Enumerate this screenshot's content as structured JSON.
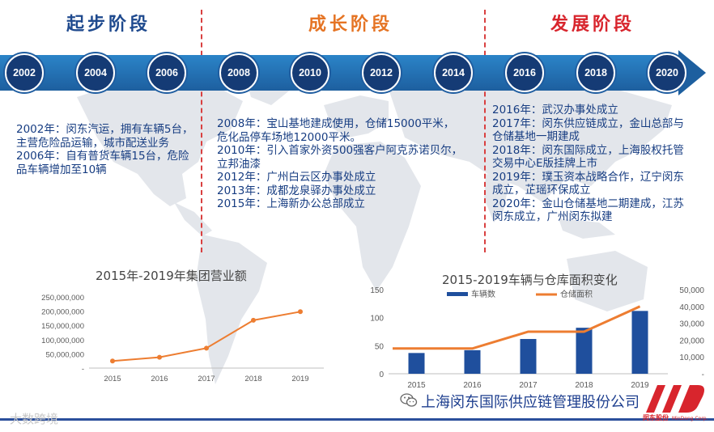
{
  "phases": [
    {
      "title": "起步阶段",
      "lines": [
        "2002年：闵东汽运，拥有车辆5台，",
        "主营危险品运输，城市配送业务",
        "2006年：自有普货车辆15台，危险",
        "品车辆增加至10辆"
      ]
    },
    {
      "title": "成长阶段",
      "lines": [
        "2008年：宝山基地建成使用，仓储15000平米，",
        "危化品停车场地12000平米。",
        "2010年：引入首家外资500强客户阿克苏诺贝尔，",
        "立邦油漆",
        "2012年：广州白云区办事处成立",
        "2013年：成都龙泉驿办事处成立",
        "2015年：上海新办公总部成立"
      ]
    },
    {
      "title": "发展阶段",
      "lines": [
        "2016年：武汉办事处成立",
        "2017年：闵东供应链成立，金山总部与",
        "仓储基地一期建成",
        "2018年：闵东国际成立，上海股权托管",
        "交易中心E版挂牌上市",
        "2019年：璞玉资本战略合作，辽宁闵东",
        "成立，芷瑶环保成立",
        "2020年：金山仓储基地二期建成，江苏",
        "闵东成立，广州闵东拟建"
      ]
    }
  ],
  "timeline": {
    "years": [
      "2002",
      "2004",
      "2006",
      "2008",
      "2010",
      "2012",
      "2014",
      "2016",
      "2018",
      "2020"
    ]
  },
  "chart_data": [
    {
      "type": "line",
      "title": "2015年-2019年集团营业额",
      "x": [
        "2015",
        "2016",
        "2017",
        "2018",
        "2019"
      ],
      "series": [
        {
          "name": "营业额",
          "values": [
            25000000,
            38000000,
            70000000,
            168000000,
            198000000
          ]
        }
      ],
      "ylim": [
        0,
        250000000
      ],
      "yticks": [
        "-",
        "50,000,000",
        "100,000,000",
        "150,000,000",
        "200,000,000",
        "250,000,000"
      ],
      "ytick_values": [
        0,
        50000000,
        100000000,
        150000000,
        200000000,
        250000000
      ],
      "colors": {
        "line": "#ed7d31",
        "axis": "#bfbfbf",
        "text": "#595959"
      }
    },
    {
      "type": "bar",
      "title": "2015-2019车辆与仓库面积变化",
      "categories": [
        "2015",
        "2016",
        "2017",
        "2018",
        "2019"
      ],
      "series": [
        {
          "name": "车辆数",
          "kind": "bar",
          "axis": "left",
          "values": [
            37,
            42,
            62,
            82,
            112
          ]
        },
        {
          "name": "仓储面积",
          "kind": "line",
          "axis": "right",
          "values": [
            15000,
            15000,
            25000,
            25000,
            40000
          ]
        }
      ],
      "ylim_left": [
        0,
        150
      ],
      "yticks_left": [
        "0",
        "50",
        "100",
        "150"
      ],
      "ytick_values_left": [
        0,
        50,
        100,
        150
      ],
      "ylim_right": [
        0,
        50000
      ],
      "yticks_right": [
        "-",
        "10,000",
        "20,000",
        "30,000",
        "40,000",
        "50,000"
      ],
      "ytick_values_right": [
        0,
        10000,
        20000,
        30000,
        40000,
        50000
      ],
      "legend": [
        "车辆数",
        "仓储面积"
      ],
      "legend_position": "top",
      "colors": {
        "bar": "#1f4f9d",
        "line": "#ed7d31",
        "axis": "#bfbfbf",
        "text": "#595959"
      }
    }
  ],
  "footer": {
    "company": "上海闵东国际供应链管理股份公司",
    "watermark": "大数跨境",
    "logo_text": "闵东股份",
    "logo_sub": "MinDong Corp."
  },
  "colors": {
    "timeline": "#1d5f9f",
    "node": "#153b75",
    "divider": "#d94040",
    "phase_text": "#173d82"
  }
}
